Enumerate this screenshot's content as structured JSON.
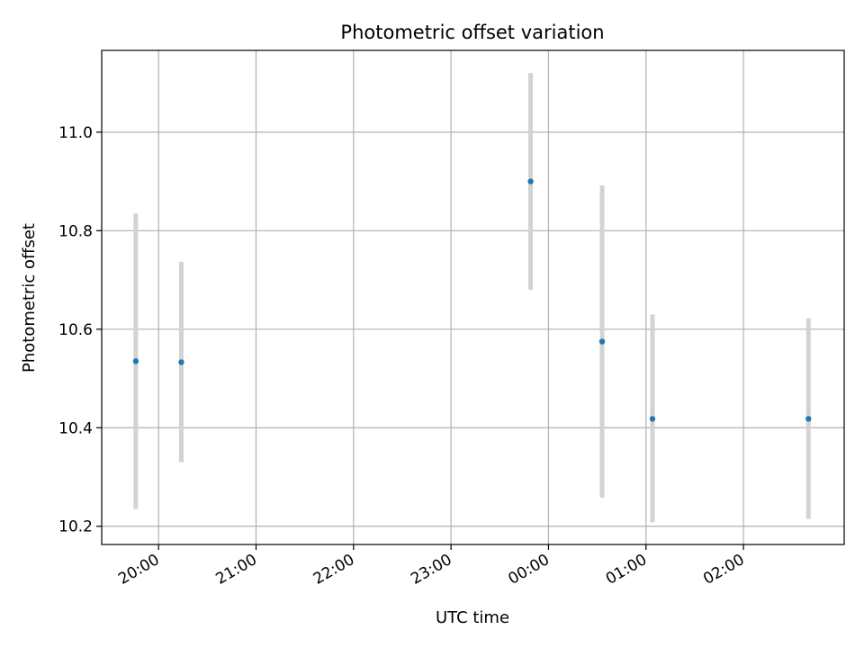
{
  "chart_data": {
    "type": "scatter",
    "title": "Photometric offset variation",
    "xlabel": "UTC time",
    "ylabel": "Photometric offset",
    "x_ticks": [
      "20:00",
      "21:00",
      "22:00",
      "23:00",
      "00:00",
      "01:00",
      "02:00"
    ],
    "y_ticks": [
      "10.2",
      "10.4",
      "10.6",
      "10.8",
      "11.0"
    ],
    "xlim": [
      "19:25",
      "03:02"
    ],
    "ylim": [
      10.163,
      11.166
    ],
    "grid": true,
    "points": [
      {
        "time": "19:46",
        "y": 10.535,
        "err_low": 10.235,
        "err_high": 10.835
      },
      {
        "time": "20:14",
        "y": 10.533,
        "err_low": 10.33,
        "err_high": 10.737
      },
      {
        "time": "23:49",
        "y": 10.9,
        "err_low": 10.68,
        "err_high": 11.12
      },
      {
        "time": "00:33",
        "y": 10.575,
        "err_low": 10.258,
        "err_high": 10.892
      },
      {
        "time": "01:04",
        "y": 10.418,
        "err_low": 10.208,
        "err_high": 10.63
      },
      {
        "time": "02:40",
        "y": 10.418,
        "err_low": 10.215,
        "err_high": 10.622
      }
    ],
    "colors": {
      "marker": "#1f77b4",
      "errorbar": "#d3d3d3",
      "grid": "#b0b0b0"
    }
  }
}
